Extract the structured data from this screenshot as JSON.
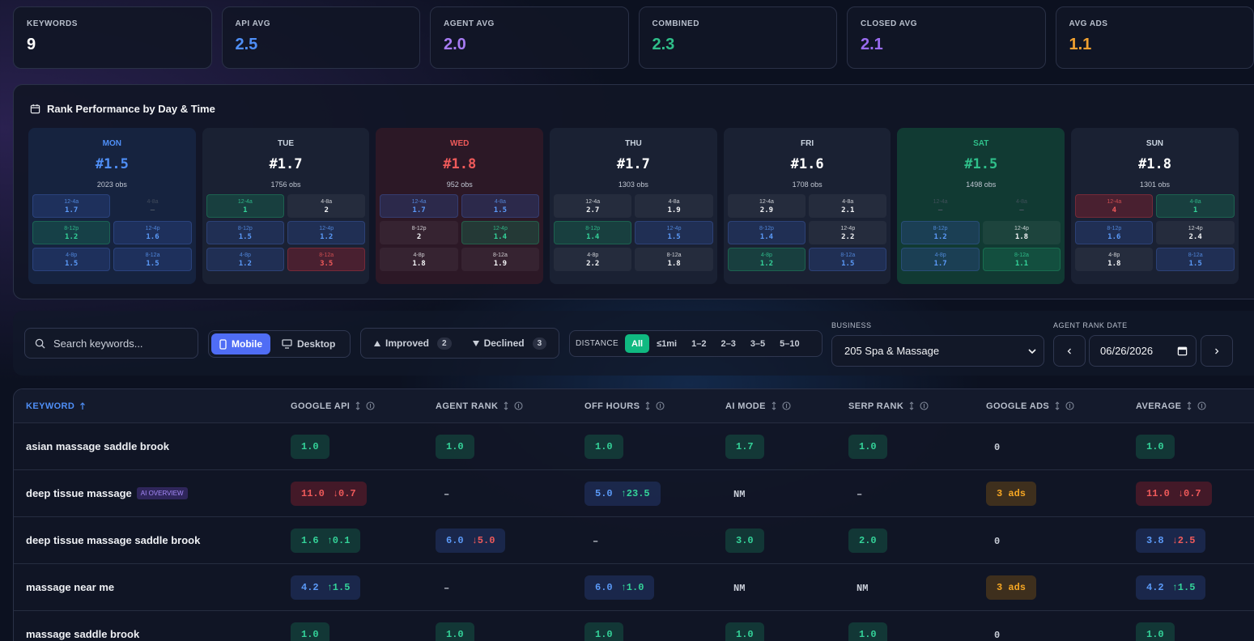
{
  "stats": [
    {
      "label": "KEYWORDS",
      "value": "9",
      "color": "#ffffff"
    },
    {
      "label": "API AVG",
      "value": "2.5",
      "color": "#4f8ff7"
    },
    {
      "label": "AGENT AVG",
      "value": "2.0",
      "color": "#a77bf3"
    },
    {
      "label": "COMBINED",
      "value": "2.3",
      "color": "#2fbf8a"
    },
    {
      "label": "CLOSED AVG",
      "value": "2.1",
      "color": "#9a6cf0"
    },
    {
      "label": "AVG ADS",
      "value": "1.1",
      "color": "#f0a030"
    }
  ],
  "heatmap": {
    "title": "Rank Performance by Day & Time",
    "days": [
      {
        "name": "MON",
        "rank": "#1.5",
        "obs": "2023 obs",
        "tone": "blue",
        "slots": [
          {
            "label": "12-4a",
            "value": "1.7",
            "tone": "blue"
          },
          {
            "label": "4-8a",
            "value": "–",
            "tone": "dim"
          },
          {
            "label": "8-12p",
            "value": "1.2",
            "tone": "green"
          },
          {
            "label": "12-4p",
            "value": "1.6",
            "tone": "blue"
          },
          {
            "label": "4-8p",
            "value": "1.5",
            "tone": "blue"
          },
          {
            "label": "8-12a",
            "value": "1.5",
            "tone": "blue"
          }
        ]
      },
      {
        "name": "TUE",
        "rank": "#1.7",
        "obs": "1756 obs",
        "tone": "gray",
        "slots": [
          {
            "label": "12-4a",
            "value": "1",
            "tone": "green"
          },
          {
            "label": "4-8a",
            "value": "2",
            "tone": "gray"
          },
          {
            "label": "8-12p",
            "value": "1.5",
            "tone": "blue"
          },
          {
            "label": "12-4p",
            "value": "1.2",
            "tone": "blue"
          },
          {
            "label": "4-8p",
            "value": "1.2",
            "tone": "blue"
          },
          {
            "label": "8-12a",
            "value": "3.5",
            "tone": "red"
          }
        ]
      },
      {
        "name": "WED",
        "rank": "#1.8",
        "obs": "952 obs",
        "tone": "red",
        "slots": [
          {
            "label": "12-4a",
            "value": "1.7",
            "tone": "blue"
          },
          {
            "label": "4-8a",
            "value": "1.5",
            "tone": "blue"
          },
          {
            "label": "8-12p",
            "value": "2",
            "tone": "gray"
          },
          {
            "label": "12-4p",
            "value": "1.4",
            "tone": "green"
          },
          {
            "label": "4-8p",
            "value": "1.8",
            "tone": "gray"
          },
          {
            "label": "8-12a",
            "value": "1.9",
            "tone": "gray"
          }
        ]
      },
      {
        "name": "THU",
        "rank": "#1.7",
        "obs": "1303 obs",
        "tone": "gray",
        "slots": [
          {
            "label": "12-4a",
            "value": "2.7",
            "tone": "gray"
          },
          {
            "label": "4-8a",
            "value": "1.9",
            "tone": "gray"
          },
          {
            "label": "8-12p",
            "value": "1.4",
            "tone": "green"
          },
          {
            "label": "12-4p",
            "value": "1.5",
            "tone": "blue"
          },
          {
            "label": "4-8p",
            "value": "2.2",
            "tone": "gray"
          },
          {
            "label": "8-12a",
            "value": "1.8",
            "tone": "gray"
          }
        ]
      },
      {
        "name": "FRI",
        "rank": "#1.6",
        "obs": "1708 obs",
        "tone": "gray",
        "slots": [
          {
            "label": "12-4a",
            "value": "2.9",
            "tone": "gray"
          },
          {
            "label": "4-8a",
            "value": "2.1",
            "tone": "gray"
          },
          {
            "label": "8-12p",
            "value": "1.4",
            "tone": "blue"
          },
          {
            "label": "12-4p",
            "value": "2.2",
            "tone": "gray"
          },
          {
            "label": "4-8p",
            "value": "1.2",
            "tone": "green"
          },
          {
            "label": "8-12a",
            "value": "1.5",
            "tone": "blue"
          }
        ]
      },
      {
        "name": "SAT",
        "rank": "#1.5",
        "obs": "1498 obs",
        "tone": "green",
        "slots": [
          {
            "label": "12-4a",
            "value": "–",
            "tone": "dim"
          },
          {
            "label": "4-8a",
            "value": "–",
            "tone": "dim"
          },
          {
            "label": "8-12p",
            "value": "1.2",
            "tone": "blue"
          },
          {
            "label": "12-4p",
            "value": "1.8",
            "tone": "gray"
          },
          {
            "label": "4-8p",
            "value": "1.7",
            "tone": "blue"
          },
          {
            "label": "8-12a",
            "value": "1.1",
            "tone": "green"
          }
        ]
      },
      {
        "name": "SUN",
        "rank": "#1.8",
        "obs": "1301 obs",
        "tone": "gray",
        "slots": [
          {
            "label": "12-4a",
            "value": "4",
            "tone": "red"
          },
          {
            "label": "4-8a",
            "value": "1",
            "tone": "green"
          },
          {
            "label": "8-12p",
            "value": "1.6",
            "tone": "blue"
          },
          {
            "label": "12-4p",
            "value": "2.4",
            "tone": "gray"
          },
          {
            "label": "4-8p",
            "value": "1.8",
            "tone": "gray"
          },
          {
            "label": "8-12a",
            "value": "1.5",
            "tone": "blue"
          }
        ]
      }
    ]
  },
  "toolbar": {
    "search_placeholder": "Search keywords...",
    "device": {
      "options": [
        "Mobile",
        "Desktop"
      ],
      "active": 0
    },
    "trend": [
      {
        "label": "Improved",
        "count": 2
      },
      {
        "label": "Declined",
        "count": 3
      }
    ],
    "distance": {
      "label": "DISTANCE",
      "options": [
        "All",
        "≤1mi",
        "1–2",
        "2–3",
        "3–5",
        "5–10"
      ],
      "active": 0
    },
    "business": {
      "label": "BUSINESS",
      "value": "205 Spa & Massage"
    },
    "agent_rank_date": {
      "label": "AGENT RANK DATE",
      "value": "06/26/2026"
    }
  },
  "table": {
    "columns": [
      "KEYWORD",
      "GOOGLE API",
      "AGENT RANK",
      "OFF HOURS",
      "AI MODE",
      "SERP RANK",
      "GOOGLE ADS",
      "AVERAGE"
    ],
    "sorted_column": 0,
    "rows": [
      {
        "keyword": "asian massage saddle brook",
        "cells": [
          {
            "value": "1.0",
            "tone": "green"
          },
          {
            "value": "1.0",
            "tone": "green"
          },
          {
            "value": "1.0",
            "tone": "green"
          },
          {
            "value": "1.7",
            "tone": "green"
          },
          {
            "value": "1.0",
            "tone": "green"
          },
          {
            "value": "0"
          },
          {
            "value": "1.0",
            "tone": "green"
          }
        ]
      },
      {
        "keyword": "deep tissue massage",
        "badge": "AI OVERVIEW",
        "cells": [
          {
            "value": "11.0",
            "delta": "↓0.7",
            "tone": "red"
          },
          {
            "value": "–"
          },
          {
            "value": "5.0",
            "delta": "↑23.5",
            "tone": "blue"
          },
          {
            "value": "NM"
          },
          {
            "value": "–"
          },
          {
            "value": "3 ads",
            "tone": "amber"
          },
          {
            "value": "11.0",
            "delta": "↓0.7",
            "tone": "red"
          }
        ]
      },
      {
        "keyword": "deep tissue massage saddle brook",
        "cells": [
          {
            "value": "1.6",
            "delta": "↑0.1",
            "tone": "green"
          },
          {
            "value": "6.0",
            "delta": "↓5.0",
            "tone": "blue"
          },
          {
            "value": "–"
          },
          {
            "value": "3.0",
            "tone": "green"
          },
          {
            "value": "2.0",
            "tone": "green"
          },
          {
            "value": "0"
          },
          {
            "value": "3.8",
            "delta": "↓2.5",
            "tone": "blue"
          }
        ]
      },
      {
        "keyword": "massage near me",
        "cells": [
          {
            "value": "4.2",
            "delta": "↑1.5",
            "tone": "blue"
          },
          {
            "value": "–"
          },
          {
            "value": "6.0",
            "delta": "↑1.0",
            "tone": "blue"
          },
          {
            "value": "NM"
          },
          {
            "value": "NM"
          },
          {
            "value": "3 ads",
            "tone": "amber"
          },
          {
            "value": "4.2",
            "delta": "↑1.5",
            "tone": "blue"
          }
        ]
      },
      {
        "keyword": "massage saddle brook",
        "cells": [
          {
            "value": "1.0",
            "tone": "green"
          },
          {
            "value": "1.0",
            "tone": "green"
          },
          {
            "value": "1.0",
            "tone": "green"
          },
          {
            "value": "1.0",
            "tone": "green"
          },
          {
            "value": "1.0",
            "tone": "green"
          },
          {
            "value": "0"
          },
          {
            "value": "1.0",
            "tone": "green"
          }
        ]
      }
    ]
  }
}
